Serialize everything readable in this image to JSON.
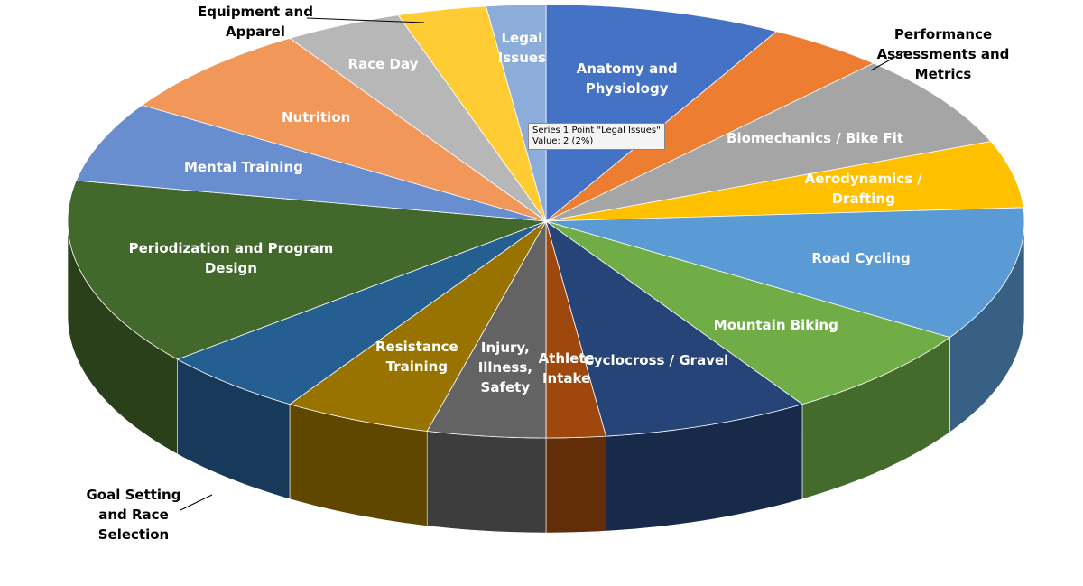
{
  "chart_data": {
    "type": "pie3d",
    "categories": [
      "Anatomy and Physiology",
      "Performance Assessments and Metrics",
      "Biomechanics / Bike Fit",
      "Aerodynamics / Drafting",
      "Road Cycling",
      "Mountain Biking",
      "Cyclocross / Gravel",
      "Athlete Intake",
      "Injury, Illness, Safety",
      "Resistance Training",
      "Goal Setting and Race Selection",
      "Periodization and Program Design",
      "Mental Training",
      "Nutrition",
      "Race Day",
      "Equipment and Apparel",
      "Legal Issues"
    ],
    "values": [
      8,
      4,
      7,
      5,
      10,
      7,
      7,
      2,
      4,
      5,
      5,
      14,
      6,
      7,
      4,
      3,
      2
    ],
    "colors": [
      "#4472c4",
      "#ed7d31",
      "#a5a5a5",
      "#ffc000",
      "#5b9bd5",
      "#70ad47",
      "#264478",
      "#9e480e",
      "#636363",
      "#997300",
      "#255e91",
      "#43682b",
      "#698ed0",
      "#f1975a",
      "#b7b7b7",
      "#ffcd33",
      "#8cacd9"
    ],
    "tooltip": {
      "line1": "Series 1 Point \"Legal Issues\"",
      "line2": "Value: 2 (2%)"
    }
  }
}
